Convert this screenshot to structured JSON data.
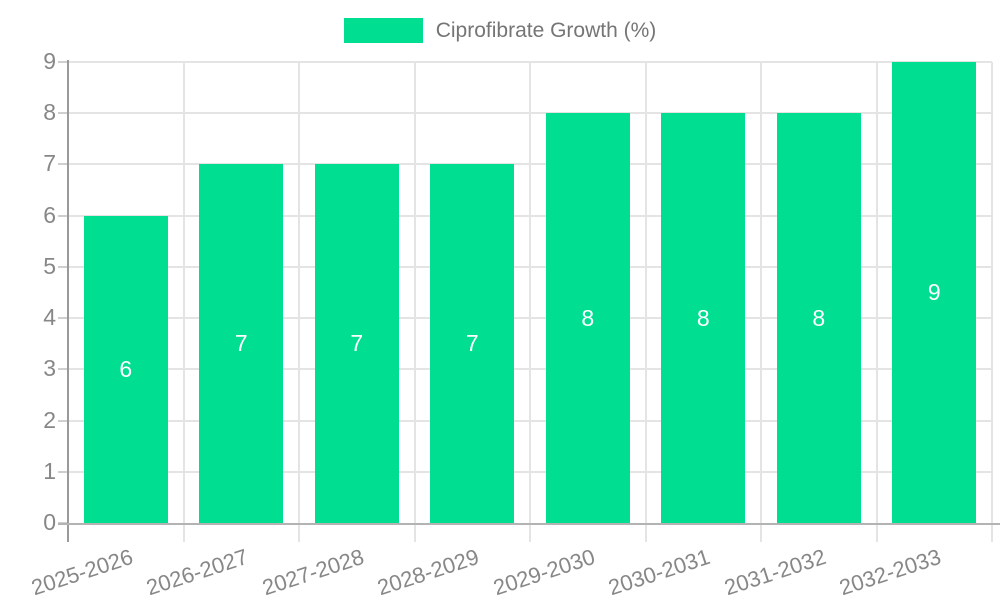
{
  "legend": {
    "label": "Ciprofibrate Growth (%)"
  },
  "chart_data": {
    "type": "bar",
    "title": "",
    "series_name": "Ciprofibrate Growth (%)",
    "categories": [
      "2025-2026",
      "2026-2027",
      "2027-2028",
      "2028-2029",
      "2029-2030",
      "2030-2031",
      "2031-2032",
      "2032-2033"
    ],
    "values": [
      6,
      7,
      7,
      7,
      8,
      8,
      8,
      9
    ],
    "value_labels_shown": true,
    "xlabel": "",
    "ylabel": "",
    "ylim": [
      0,
      9
    ],
    "ytick_step": 1,
    "yticks": [
      0,
      1,
      2,
      3,
      4,
      5,
      6,
      7,
      8,
      9
    ],
    "grid": true,
    "legend_position": "top-center",
    "x_label_rotation_deg": -18,
    "colors": {
      "bar": "#00DE92",
      "value_label": "#FFFFFF",
      "grid_line": "#E4E4E4",
      "y_axis_line": "#9A9A9A",
      "x_axis_line": "#B3B3B3",
      "tick_mark": "#CFCFCF",
      "axis_text": "#878787",
      "legend_text": "#757575",
      "background": "#FFFFFF"
    }
  }
}
